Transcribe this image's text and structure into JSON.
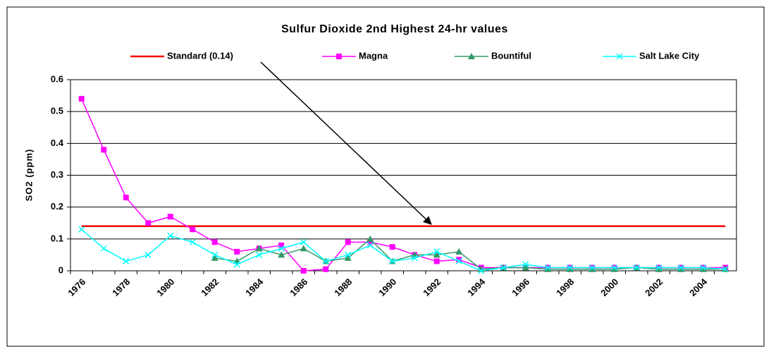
{
  "chart_data": {
    "type": "line",
    "title": "Sulfur Dioxide 2nd Highest 24-hr values",
    "y_label": "SO2 (ppm)",
    "categories": [
      "1976",
      null,
      "1978",
      null,
      "1980",
      null,
      "1982",
      null,
      "1984",
      null,
      "1986",
      null,
      "1988",
      null,
      "1990",
      null,
      "1992",
      null,
      "1994",
      null,
      "1996",
      null,
      "1998",
      null,
      "2000",
      null,
      "2002",
      null,
      "2004",
      null
    ],
    "series": [
      {
        "name": "Standard (0.14)",
        "color": "#ff0000",
        "marker": "none",
        "values": [
          0.14,
          0.14,
          0.14,
          0.14,
          0.14,
          0.14,
          0.14,
          0.14,
          0.14,
          0.14,
          0.14,
          0.14,
          0.14,
          0.14,
          0.14,
          0.14,
          0.14,
          0.14,
          0.14,
          0.14,
          0.14,
          0.14,
          0.14,
          0.14,
          0.14,
          0.14,
          0.14,
          0.14,
          0.14,
          0.14
        ]
      },
      {
        "name": "Magna",
        "color": "#ff00ff",
        "marker": "square",
        "values": [
          0.54,
          0.38,
          0.23,
          0.15,
          0.17,
          0.13,
          0.09,
          0.06,
          0.07,
          0.08,
          0.0,
          0.005,
          0.09,
          0.09,
          0.075,
          0.05,
          0.03,
          0.035,
          0.01,
          0.01,
          0.01,
          0.01,
          0.01,
          0.01,
          0.01,
          0.01,
          0.01,
          0.01,
          0.01,
          0.01
        ]
      },
      {
        "name": "Bountiful",
        "color": "#339966",
        "marker": "triangle",
        "values": [
          null,
          null,
          null,
          null,
          null,
          null,
          0.04,
          0.03,
          0.07,
          0.05,
          0.07,
          0.03,
          0.04,
          0.1,
          0.03,
          0.05,
          0.05,
          0.06,
          0.005,
          0.01,
          0.01,
          0.005,
          0.005,
          0.005,
          0.005,
          0.01,
          0.005,
          0.005,
          0.005,
          0.005
        ]
      },
      {
        "name": "Salt Lake City",
        "color": "#00ffff",
        "marker": "x",
        "values": [
          0.13,
          0.07,
          0.03,
          0.05,
          0.11,
          0.09,
          0.05,
          0.02,
          0.05,
          0.07,
          0.09,
          0.03,
          0.05,
          0.08,
          0.03,
          0.04,
          0.06,
          0.03,
          0.0,
          0.01,
          0.02,
          0.01,
          0.01,
          0.01,
          0.01,
          0.01,
          0.01,
          0.01,
          0.01,
          0.005
        ]
      }
    ],
    "ylim": [
      0,
      0.6
    ],
    "yticks": [
      0,
      0.1,
      0.2,
      0.3,
      0.4,
      0.5,
      0.6
    ],
    "grid": true,
    "legend": "top"
  }
}
